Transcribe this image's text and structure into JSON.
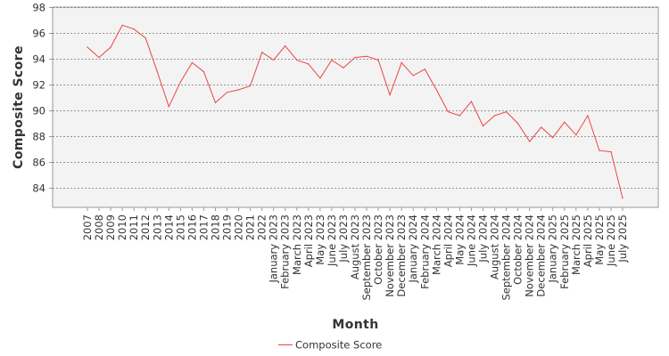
{
  "chart_data": {
    "type": "line",
    "title": "",
    "xlabel": "Month",
    "ylabel": "Composite Score",
    "ylim": [
      82.5,
      98
    ],
    "yticks": [
      84,
      86,
      88,
      90,
      92,
      94,
      96,
      98
    ],
    "grid": true,
    "legend_position": "bottom-center",
    "categories": [
      "2007",
      "2008",
      "2009",
      "2010",
      "2011",
      "2012",
      "2013",
      "2014",
      "2015",
      "2016",
      "2017",
      "2018",
      "2019",
      "2020",
      "2021",
      "2022",
      "January 2023",
      "February 2023",
      "March 2023",
      "April 2023",
      "May 2023",
      "June 2023",
      "July 2023",
      "August 2023",
      "September 2023",
      "October 2023",
      "November 2023",
      "December 2023",
      "January 2024",
      "February 2024",
      "March 2024",
      "April 2024",
      "May 2024",
      "June 2024",
      "July 2024",
      "August 2024",
      "September 2024",
      "October 2024",
      "November 2024",
      "December 2024",
      "January 2025",
      "February 2025",
      "March 2025",
      "April 2025",
      "May 2025",
      "June 2025",
      "July 2025"
    ],
    "series": [
      {
        "name": "Composite Score",
        "color": "#ee4444",
        "values": [
          94.9,
          94.1,
          94.9,
          96.6,
          96.3,
          95.6,
          93.0,
          90.3,
          92.2,
          93.7,
          93.0,
          90.6,
          91.4,
          91.6,
          91.9,
          94.5,
          93.9,
          95.0,
          93.9,
          93.6,
          92.5,
          93.9,
          93.3,
          94.1,
          94.2,
          93.9,
          91.2,
          93.7,
          92.7,
          93.2,
          91.6,
          89.9,
          89.6,
          90.7,
          88.8,
          89.6,
          89.9,
          89.0,
          87.6,
          88.7,
          87.9,
          89.1,
          88.1,
          89.6,
          86.9,
          86.8,
          83.2
        ]
      }
    ]
  },
  "colors": {
    "plot_background": "#f3f3f3",
    "grid": "#777777",
    "frame": "#999999",
    "text": "#333333"
  }
}
